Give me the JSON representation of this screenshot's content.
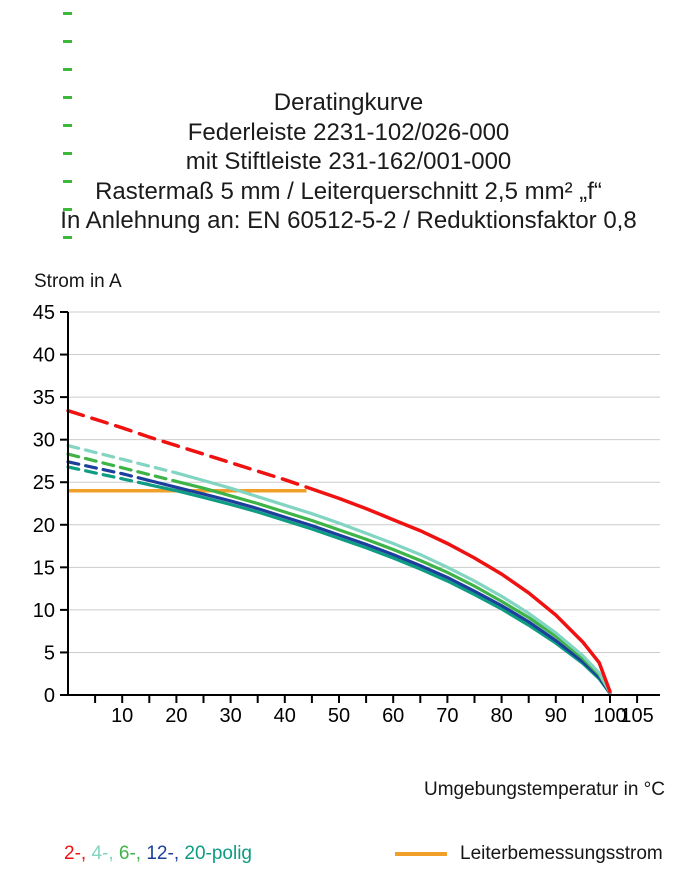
{
  "title": {
    "lines": [
      "Deratingkurve",
      "Federleiste 2231-102/026-000",
      "mit Stiftleiste 231-162/001-000",
      "Rastermaß 5 mm / Leiterquerschnitt 2,5 mm² „f“",
      "In Anlehnung an: EN 60512-5-2 / Reduktionsfaktor 0,8"
    ]
  },
  "chart_data": {
    "type": "line",
    "title": "Deratingkurve",
    "xlabel": "Umgebungstemperatur in °C",
    "ylabel": "Strom in A",
    "xlim": [
      0,
      109
    ],
    "ylim": [
      0,
      45
    ],
    "x_major_ticks": [
      10,
      20,
      30,
      40,
      50,
      60,
      70,
      80,
      90,
      100,
      105
    ],
    "x_minor_tick_step": 5,
    "y_ticks": [
      0,
      5,
      10,
      15,
      20,
      25,
      30,
      35,
      40,
      45
    ],
    "grid": "horizontal",
    "colors": {
      "grid": "#cccccc",
      "axis": "#000000"
    },
    "reference_line": {
      "label": "Leiterbemessungsstrom",
      "y": 24,
      "x_start": 0,
      "x_end": 44,
      "color": "#f0a028"
    },
    "series": [
      {
        "name": "2-polig",
        "color": "#f01111",
        "line_width": 3.5,
        "dash_pattern": "16 9",
        "segments": [
          {
            "style": "dashed",
            "points": [
              [
                0,
                33.4
              ],
              [
                5,
                32.4
              ],
              [
                10,
                31.4
              ],
              [
                15,
                30.3
              ],
              [
                20,
                29.3
              ],
              [
                25,
                28.3
              ],
              [
                30,
                27.3
              ],
              [
                35,
                26.3
              ],
              [
                40,
                25.3
              ],
              [
                45,
                24.2
              ]
            ]
          },
          {
            "style": "solid",
            "points": [
              [
                45,
                24.2
              ],
              [
                50,
                23.1
              ],
              [
                55,
                21.9
              ],
              [
                60,
                20.6
              ],
              [
                65,
                19.3
              ],
              [
                70,
                17.8
              ],
              [
                75,
                16.1
              ],
              [
                80,
                14.2
              ],
              [
                85,
                12.0
              ],
              [
                90,
                9.4
              ],
              [
                95,
                6.2
              ],
              [
                98,
                3.8
              ],
              [
                100,
                0.4
              ]
            ]
          }
        ]
      },
      {
        "name": "4-polig",
        "color": "#82d5c2",
        "line_width": 3.2,
        "dash_pattern": "11 7",
        "segments": [
          {
            "style": "dashed",
            "points": [
              [
                0,
                29.3
              ],
              [
                5,
                28.5
              ],
              [
                10,
                27.7
              ],
              [
                15,
                26.9
              ],
              [
                20,
                26.1
              ]
            ]
          },
          {
            "style": "solid",
            "points": [
              [
                20,
                26.1
              ],
              [
                25,
                25.2
              ],
              [
                30,
                24.3
              ],
              [
                35,
                23.3
              ],
              [
                40,
                22.3
              ],
              [
                45,
                21.3
              ],
              [
                50,
                20.2
              ],
              [
                55,
                19.0
              ],
              [
                60,
                17.8
              ],
              [
                65,
                16.5
              ],
              [
                70,
                15.0
              ],
              [
                75,
                13.4
              ],
              [
                80,
                11.6
              ],
              [
                85,
                9.6
              ],
              [
                90,
                7.3
              ],
              [
                95,
                4.6
              ],
              [
                98,
                2.6
              ],
              [
                100,
                0.3
              ]
            ]
          }
        ]
      },
      {
        "name": "6-polig",
        "color": "#3eb448",
        "line_width": 3.2,
        "dash_pattern": "11 7",
        "segments": [
          {
            "style": "dashed",
            "points": [
              [
                0,
                28.3
              ],
              [
                5,
                27.5
              ],
              [
                10,
                26.7
              ],
              [
                15,
                25.9
              ],
              [
                20,
                25.1
              ]
            ]
          },
          {
            "style": "solid",
            "points": [
              [
                20,
                25.1
              ],
              [
                25,
                24.3
              ],
              [
                30,
                23.4
              ],
              [
                35,
                22.5
              ],
              [
                40,
                21.5
              ],
              [
                45,
                20.5
              ],
              [
                50,
                19.4
              ],
              [
                55,
                18.3
              ],
              [
                60,
                17.1
              ],
              [
                65,
                15.8
              ],
              [
                70,
                14.4
              ],
              [
                75,
                12.8
              ],
              [
                80,
                11.0
              ],
              [
                85,
                9.1
              ],
              [
                90,
                6.9
              ],
              [
                95,
                4.3
              ],
              [
                98,
                2.4
              ],
              [
                100,
                0.3
              ]
            ]
          }
        ]
      },
      {
        "name": "12-polig",
        "color": "#1c3f9e",
        "line_width": 3.2,
        "dash_pattern": "11 7",
        "segments": [
          {
            "style": "dashed",
            "points": [
              [
                0,
                27.4
              ],
              [
                5,
                26.7
              ],
              [
                10,
                26.0
              ],
              [
                15,
                25.2
              ]
            ]
          },
          {
            "style": "solid",
            "points": [
              [
                15,
                25.2
              ],
              [
                20,
                24.4
              ],
              [
                25,
                23.6
              ],
              [
                30,
                22.8
              ],
              [
                35,
                21.9
              ],
              [
                40,
                20.9
              ],
              [
                45,
                19.9
              ],
              [
                50,
                18.8
              ],
              [
                55,
                17.7
              ],
              [
                60,
                16.5
              ],
              [
                65,
                15.2
              ],
              [
                70,
                13.8
              ],
              [
                75,
                12.2
              ],
              [
                80,
                10.5
              ],
              [
                85,
                8.6
              ],
              [
                90,
                6.4
              ],
              [
                95,
                3.9
              ],
              [
                98,
                2.1
              ],
              [
                100,
                0.2
              ]
            ]
          }
        ]
      },
      {
        "name": "20-polig",
        "color": "#0e9c82",
        "line_width": 3.2,
        "dash_pattern": "11 7",
        "segments": [
          {
            "style": "dashed",
            "points": [
              [
                0,
                26.8
              ],
              [
                5,
                26.1
              ],
              [
                10,
                25.4
              ],
              [
                15,
                24.7
              ]
            ]
          },
          {
            "style": "solid",
            "points": [
              [
                15,
                24.7
              ],
              [
                20,
                24.0
              ],
              [
                25,
                23.2
              ],
              [
                30,
                22.4
              ],
              [
                35,
                21.5
              ],
              [
                40,
                20.5
              ],
              [
                45,
                19.5
              ],
              [
                50,
                18.4
              ],
              [
                55,
                17.3
              ],
              [
                60,
                16.1
              ],
              [
                65,
                14.8
              ],
              [
                70,
                13.4
              ],
              [
                75,
                11.8
              ],
              [
                80,
                10.1
              ],
              [
                85,
                8.2
              ],
              [
                90,
                6.1
              ],
              [
                95,
                3.7
              ],
              [
                98,
                1.9
              ],
              [
                100,
                0.2
              ]
            ]
          }
        ]
      }
    ]
  },
  "legend": {
    "poles": [
      {
        "text": "2-, ",
        "color": "#f01111"
      },
      {
        "text": "4-, ",
        "color": "#82d5c2"
      },
      {
        "text": "6-, ",
        "color": "#3eb448"
      },
      {
        "text": "12-, ",
        "color": "#1c3f9e"
      },
      {
        "text": "20-polig",
        "color": "#0e9c82"
      }
    ],
    "reference": {
      "label": "Leiterbemessungsstrom",
      "color": "#f0a028"
    }
  }
}
